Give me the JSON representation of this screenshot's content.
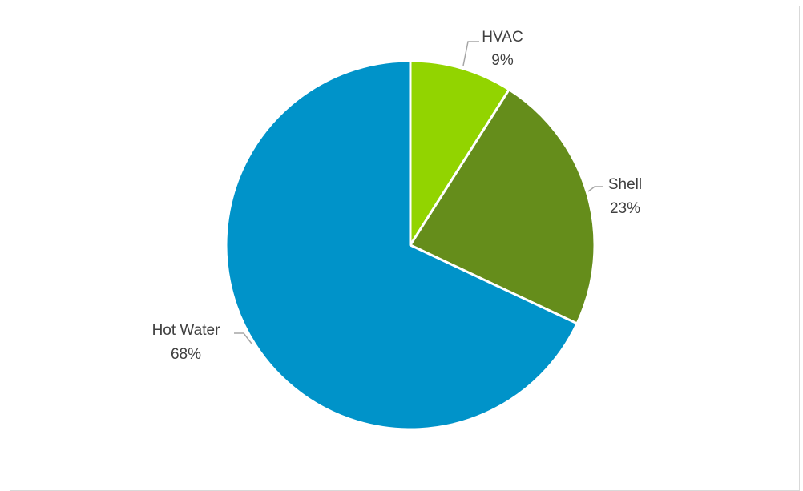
{
  "chart_data": {
    "type": "pie",
    "title": "",
    "slices": [
      {
        "name": "HVAC",
        "value": 9,
        "label": "9%",
        "color": "#92d400"
      },
      {
        "name": "Shell",
        "value": 23,
        "label": "23%",
        "color": "#658d1b"
      },
      {
        "name": "Hot Water",
        "value": 68,
        "label": "68%",
        "color": "#0093c9"
      }
    ],
    "start_angle": "12 o'clock",
    "direction": "clockwise",
    "legend": "none",
    "data_labels": "outside with leader lines"
  }
}
